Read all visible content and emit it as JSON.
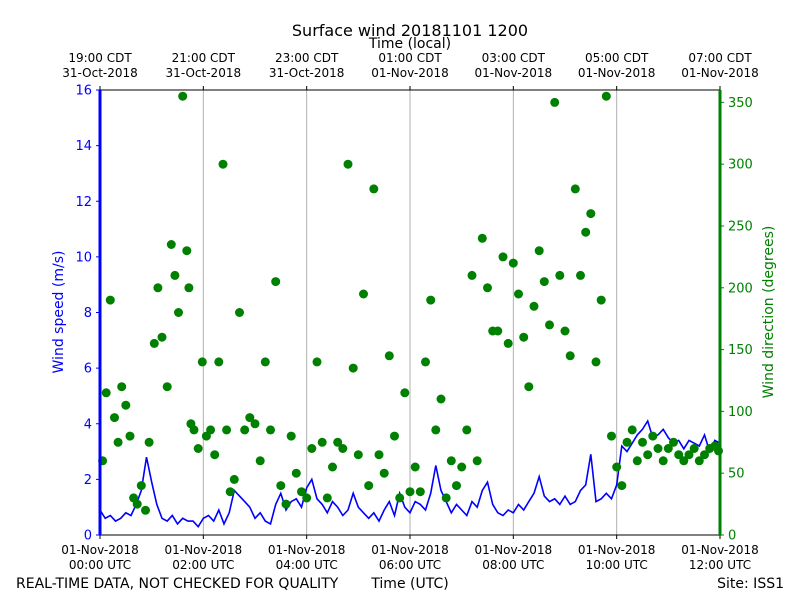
{
  "chart_data": {
    "type": "line+scatter",
    "title": "Surface wind 20181101 1200",
    "top_axis_label": "Time (local)",
    "xlabel": "Time (UTC)",
    "ylabel_left": "Wind speed (m/s)",
    "ylabel_right": "Wind direction (degrees)",
    "footer_left": "REAL-TIME DATA, NOT CHECKED FOR QUALITY",
    "footer_right": "Site: ISS1",
    "xlim_hours_utc": [
      0,
      12
    ],
    "ylim_left": [
      0,
      16
    ],
    "ylim_right": [
      0,
      360
    ],
    "colors": {
      "speed": "#0000ff",
      "direction": "#008000",
      "grid": "#b0b0b0"
    },
    "left_ticks": [
      0,
      2,
      4,
      6,
      8,
      10,
      12,
      14,
      16
    ],
    "right_ticks": [
      0,
      50,
      100,
      150,
      200,
      250,
      300,
      350
    ],
    "bottom_ticks": [
      {
        "hour": 0,
        "line1": "01-Nov-2018",
        "line2": "00:00 UTC"
      },
      {
        "hour": 2,
        "line1": "01-Nov-2018",
        "line2": "02:00 UTC"
      },
      {
        "hour": 4,
        "line1": "01-Nov-2018",
        "line2": "04:00 UTC"
      },
      {
        "hour": 6,
        "line1": "01-Nov-2018",
        "line2": "06:00 UTC"
      },
      {
        "hour": 8,
        "line1": "01-Nov-2018",
        "line2": "08:00 UTC"
      },
      {
        "hour": 10,
        "line1": "01-Nov-2018",
        "line2": "10:00 UTC"
      },
      {
        "hour": 12,
        "line1": "01-Nov-2018",
        "line2": "12:00 UTC"
      }
    ],
    "top_ticks": [
      {
        "hour": 0,
        "line1": "19:00 CDT",
        "line2": "31-Oct-2018"
      },
      {
        "hour": 2,
        "line1": "21:00 CDT",
        "line2": "31-Oct-2018"
      },
      {
        "hour": 4,
        "line1": "23:00 CDT",
        "line2": "31-Oct-2018"
      },
      {
        "hour": 6,
        "line1": "01:00 CDT",
        "line2": "01-Nov-2018"
      },
      {
        "hour": 8,
        "line1": "03:00 CDT",
        "line2": "01-Nov-2018"
      },
      {
        "hour": 10,
        "line1": "05:00 CDT",
        "line2": "01-Nov-2018"
      },
      {
        "hour": 12,
        "line1": "07:00 CDT",
        "line2": "01-Nov-2018"
      }
    ],
    "series": [
      {
        "name": "Wind speed",
        "axis": "left",
        "style": "line",
        "x_hours": [
          0.0,
          0.1,
          0.2,
          0.3,
          0.4,
          0.5,
          0.6,
          0.7,
          0.8,
          0.9,
          1.0,
          1.1,
          1.2,
          1.3,
          1.4,
          1.5,
          1.6,
          1.7,
          1.8,
          1.9,
          2.0,
          2.1,
          2.2,
          2.3,
          2.4,
          2.5,
          2.6,
          2.7,
          2.8,
          2.9,
          3.0,
          3.1,
          3.2,
          3.3,
          3.4,
          3.5,
          3.6,
          3.7,
          3.8,
          3.9,
          4.0,
          4.1,
          4.2,
          4.3,
          4.4,
          4.5,
          4.6,
          4.7,
          4.8,
          4.9,
          5.0,
          5.1,
          5.2,
          5.3,
          5.4,
          5.5,
          5.6,
          5.7,
          5.8,
          5.9,
          6.0,
          6.1,
          6.2,
          6.3,
          6.4,
          6.5,
          6.6,
          6.7,
          6.8,
          6.9,
          7.0,
          7.1,
          7.2,
          7.3,
          7.4,
          7.5,
          7.6,
          7.7,
          7.8,
          7.9,
          8.0,
          8.1,
          8.2,
          8.3,
          8.4,
          8.5,
          8.6,
          8.7,
          8.8,
          8.9,
          9.0,
          9.1,
          9.2,
          9.3,
          9.4,
          9.5,
          9.6,
          9.7,
          9.8,
          9.9,
          10.0,
          10.1,
          10.2,
          10.3,
          10.4,
          10.5,
          10.6,
          10.7,
          10.8,
          10.9,
          11.0,
          11.1,
          11.2,
          11.3,
          11.4,
          11.5,
          11.6,
          11.7,
          11.8,
          11.9,
          12.0
        ],
        "values": [
          0.9,
          0.6,
          0.7,
          0.5,
          0.6,
          0.8,
          0.7,
          1.1,
          1.6,
          2.8,
          1.9,
          1.1,
          0.6,
          0.5,
          0.7,
          0.4,
          0.6,
          0.5,
          0.5,
          0.3,
          0.6,
          0.7,
          0.5,
          0.9,
          0.4,
          0.8,
          1.6,
          1.4,
          1.2,
          1.0,
          0.6,
          0.8,
          0.5,
          0.4,
          1.1,
          1.5,
          0.9,
          1.2,
          1.3,
          1.0,
          1.7,
          2.0,
          1.3,
          1.1,
          0.8,
          1.2,
          1.0,
          0.7,
          0.9,
          1.5,
          1.0,
          0.8,
          0.6,
          0.8,
          0.5,
          0.9,
          1.2,
          0.7,
          1.5,
          1.0,
          0.8,
          1.2,
          1.1,
          0.9,
          1.5,
          2.5,
          1.6,
          1.2,
          0.8,
          1.1,
          0.9,
          0.7,
          1.2,
          1.0,
          1.6,
          1.9,
          1.1,
          0.8,
          0.7,
          0.9,
          0.8,
          1.1,
          0.9,
          1.2,
          1.5,
          2.1,
          1.4,
          1.2,
          1.3,
          1.1,
          1.4,
          1.1,
          1.2,
          1.6,
          1.8,
          2.9,
          1.2,
          1.3,
          1.5,
          1.3,
          1.8,
          3.2,
          3.0,
          3.3,
          3.6,
          3.8,
          4.1,
          3.5,
          3.6,
          3.8,
          3.5,
          3.3,
          3.4,
          3.1,
          3.4,
          3.3,
          3.2,
          3.6,
          3.0,
          3.4,
          3.3
        ]
      },
      {
        "name": "Wind direction",
        "axis": "right",
        "style": "scatter",
        "x_hours": [
          0.05,
          0.12,
          0.2,
          0.28,
          0.35,
          0.42,
          0.5,
          0.58,
          0.65,
          0.72,
          0.8,
          0.88,
          0.95,
          1.05,
          1.12,
          1.2,
          1.3,
          1.38,
          1.45,
          1.52,
          1.6,
          1.68,
          1.72,
          1.76,
          1.82,
          1.9,
          1.98,
          2.06,
          2.14,
          2.22,
          2.3,
          2.38,
          2.45,
          2.52,
          2.6,
          2.7,
          2.8,
          2.9,
          3.0,
          3.1,
          3.2,
          3.3,
          3.4,
          3.5,
          3.6,
          3.7,
          3.8,
          3.9,
          4.0,
          4.1,
          4.2,
          4.3,
          4.4,
          4.5,
          4.6,
          4.7,
          4.8,
          4.9,
          5.0,
          5.1,
          5.2,
          5.3,
          5.4,
          5.5,
          5.6,
          5.7,
          5.8,
          5.9,
          6.0,
          6.1,
          6.2,
          6.3,
          6.4,
          6.5,
          6.6,
          6.7,
          6.8,
          6.9,
          7.0,
          7.1,
          7.2,
          7.3,
          7.4,
          7.5,
          7.6,
          7.7,
          7.8,
          7.9,
          8.0,
          8.1,
          8.2,
          8.3,
          8.4,
          8.5,
          8.6,
          8.7,
          8.8,
          8.9,
          9.0,
          9.1,
          9.2,
          9.3,
          9.4,
          9.5,
          9.6,
          9.7,
          9.8,
          9.9,
          10.0,
          10.1,
          10.2,
          10.3,
          10.4,
          10.5,
          10.6,
          10.7,
          10.8,
          10.9,
          11.0,
          11.1,
          11.2,
          11.3,
          11.4,
          11.5,
          11.6,
          11.7,
          11.8,
          11.9,
          11.97
        ],
        "values": [
          60,
          115,
          190,
          95,
          75,
          120,
          105,
          80,
          30,
          25,
          40,
          20,
          75,
          155,
          200,
          160,
          120,
          235,
          210,
          180,
          355,
          230,
          200,
          90,
          85,
          70,
          140,
          80,
          85,
          65,
          140,
          300,
          85,
          35,
          45,
          180,
          85,
          95,
          90,
          60,
          140,
          85,
          205,
          40,
          25,
          80,
          50,
          35,
          30,
          70,
          140,
          75,
          30,
          55,
          75,
          70,
          300,
          135,
          65,
          195,
          40,
          280,
          65,
          50,
          145,
          80,
          30,
          115,
          35,
          55,
          35,
          140,
          190,
          85,
          110,
          30,
          60,
          40,
          55,
          85,
          210,
          60,
          240,
          200,
          165,
          165,
          225,
          155,
          220,
          195,
          160,
          120,
          185,
          230,
          205,
          170,
          350,
          210,
          165,
          145,
          280,
          210,
          245,
          260,
          140,
          190,
          355,
          80,
          55,
          40,
          75,
          85,
          60,
          75,
          65,
          80,
          70,
          60,
          70,
          75,
          65,
          60,
          65,
          70,
          60,
          65,
          70,
          72,
          68
        ]
      }
    ]
  }
}
